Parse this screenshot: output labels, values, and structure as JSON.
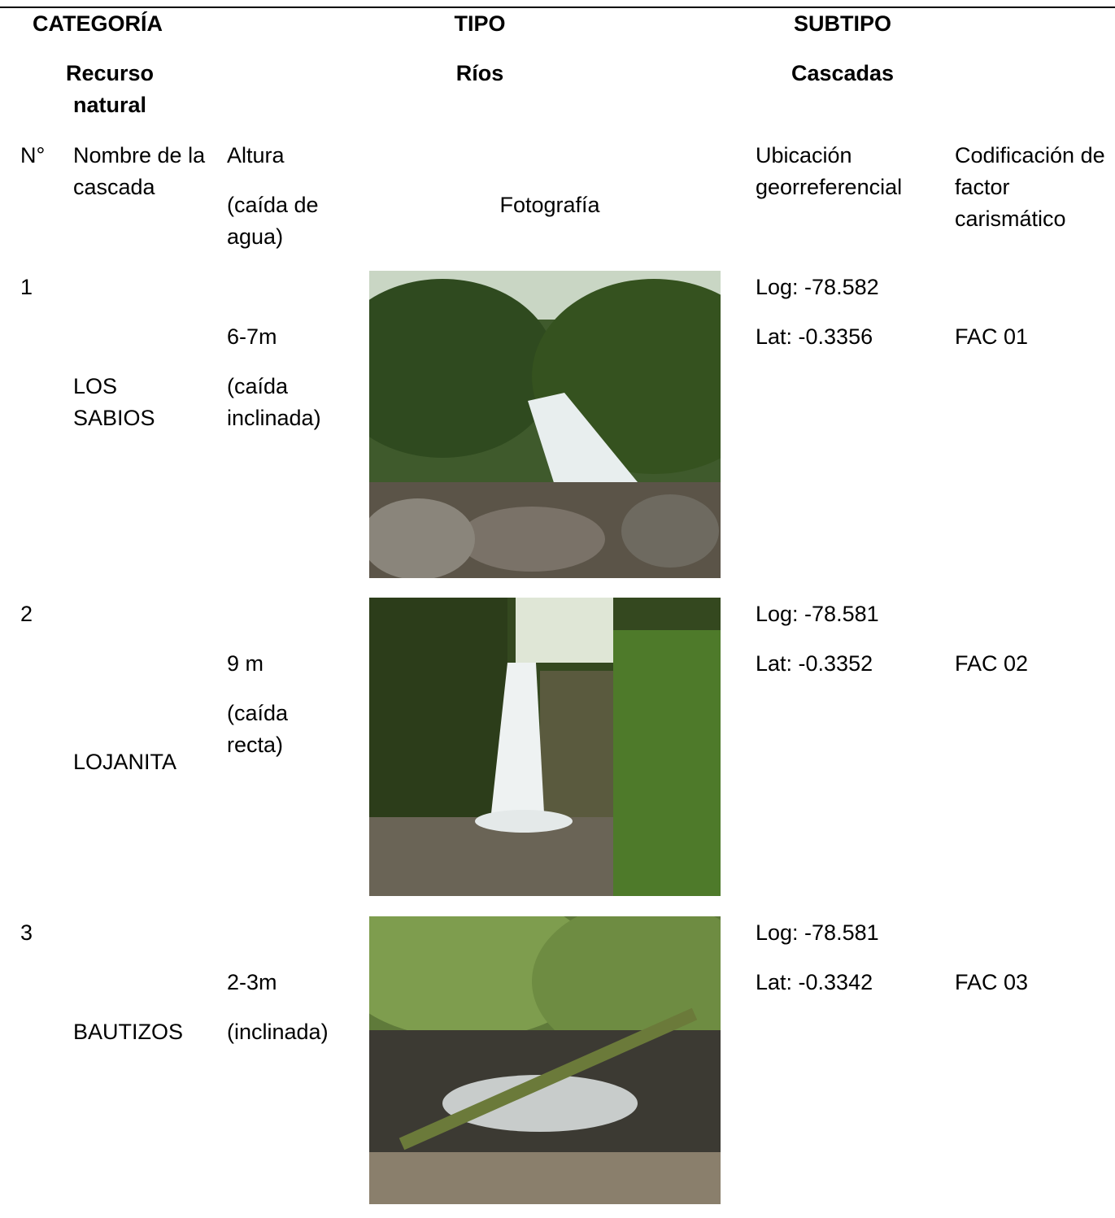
{
  "header": {
    "category_label": "CATEGORÍA",
    "type_label": "TIPO",
    "subtype_label": "SUBTIPO",
    "category": "Recurso natural",
    "type": "Ríos",
    "subtype": "Cascadas"
  },
  "table": {
    "columns": {
      "number": "N°",
      "name": "Nombre de la cascada",
      "height": "Altura",
      "height_note": "(caída de agua)",
      "photo": "Fotografía",
      "location": "Ubicación georreferencial",
      "code": "Codificación de factor carismático"
    },
    "rows": [
      {
        "number": "1",
        "name": "LOS SABIOS",
        "height": "6-7m",
        "height_note": "(caída inclinada)",
        "longitude": "Log: -78.582",
        "latitude": "Lat: -0.3356",
        "code": "FAC 01"
      },
      {
        "number": "2",
        "name": "LOJANITA",
        "height": "9 m",
        "height_note": "(caída recta)",
        "longitude": "Log: -78.581",
        "latitude": "Lat: -0.3352",
        "code": "FAC 02"
      },
      {
        "number": "3",
        "name": "BAUTIZOS",
        "height": "2-3m",
        "height_note": "(inclinada)",
        "longitude": "Log: -78.581",
        "latitude": "Lat: -0.3342",
        "code": "FAC 03"
      }
    ]
  }
}
